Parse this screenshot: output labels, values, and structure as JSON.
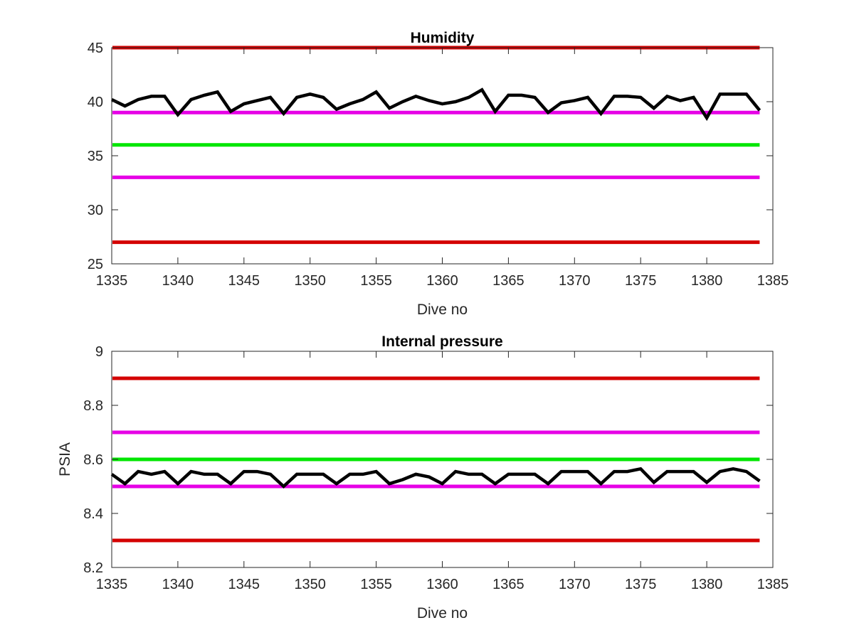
{
  "chart_data": [
    {
      "type": "line",
      "title": "Humidity",
      "xlabel": "Dive no",
      "ylabel": "",
      "xlim": [
        1335,
        1385
      ],
      "ylim": [
        25,
        45
      ],
      "xticks": [
        1335,
        1340,
        1345,
        1350,
        1355,
        1360,
        1365,
        1370,
        1375,
        1380,
        1385
      ],
      "yticks": [
        25,
        30,
        35,
        40,
        45
      ],
      "grid": false,
      "reference_lines": [
        {
          "y": 45,
          "color": "#d40000"
        },
        {
          "y": 39,
          "color": "#e600e6"
        },
        {
          "y": 36,
          "color": "#00e600"
        },
        {
          "y": 33,
          "color": "#e600e6"
        },
        {
          "y": 27,
          "color": "#d40000"
        }
      ],
      "series": [
        {
          "color": "#000000",
          "x": [
            1335,
            1336,
            1337,
            1338,
            1339,
            1340,
            1341,
            1342,
            1343,
            1344,
            1345,
            1346,
            1347,
            1348,
            1349,
            1350,
            1351,
            1352,
            1353,
            1354,
            1355,
            1356,
            1357,
            1358,
            1359,
            1360,
            1361,
            1362,
            1363,
            1364,
            1365,
            1366,
            1367,
            1368,
            1369,
            1370,
            1371,
            1372,
            1373,
            1374,
            1375,
            1376,
            1377,
            1378,
            1379,
            1380,
            1381,
            1382,
            1383,
            1384
          ],
          "y": [
            40.2,
            39.6,
            40.2,
            40.5,
            40.5,
            38.8,
            40.2,
            40.6,
            40.9,
            39.1,
            39.8,
            40.1,
            40.4,
            38.9,
            40.4,
            40.7,
            40.4,
            39.3,
            39.8,
            40.2,
            40.9,
            39.4,
            40.0,
            40.5,
            40.1,
            39.8,
            40.0,
            40.4,
            41.1,
            39.1,
            40.6,
            40.6,
            40.4,
            39.0,
            39.9,
            40.1,
            40.4,
            38.9,
            40.5,
            40.5,
            40.4,
            39.4,
            40.5,
            40.1,
            40.4,
            38.5,
            40.7,
            40.7,
            40.7,
            39.2
          ]
        }
      ]
    },
    {
      "type": "line",
      "title": "Internal pressure",
      "xlabel": "Dive no",
      "ylabel": "PSIA",
      "xlim": [
        1335,
        1385
      ],
      "ylim": [
        8.2,
        9
      ],
      "xticks": [
        1335,
        1340,
        1345,
        1350,
        1355,
        1360,
        1365,
        1370,
        1375,
        1380,
        1385
      ],
      "yticks": [
        8.2,
        8.4,
        8.6,
        8.8,
        9
      ],
      "grid": false,
      "reference_lines": [
        {
          "y": 8.9,
          "color": "#d40000"
        },
        {
          "y": 8.7,
          "color": "#e600e6"
        },
        {
          "y": 8.6,
          "color": "#00e600"
        },
        {
          "y": 8.5,
          "color": "#e600e6"
        },
        {
          "y": 8.3,
          "color": "#d40000"
        }
      ],
      "series": [
        {
          "color": "#000000",
          "x": [
            1335,
            1336,
            1337,
            1338,
            1339,
            1340,
            1341,
            1342,
            1343,
            1344,
            1345,
            1346,
            1347,
            1348,
            1349,
            1350,
            1351,
            1352,
            1353,
            1354,
            1355,
            1356,
            1357,
            1358,
            1359,
            1360,
            1361,
            1362,
            1363,
            1364,
            1365,
            1366,
            1367,
            1368,
            1369,
            1370,
            1371,
            1372,
            1373,
            1374,
            1375,
            1376,
            1377,
            1378,
            1379,
            1380,
            1381,
            1382,
            1383,
            1384
          ],
          "y": [
            8.545,
            8.51,
            8.555,
            8.545,
            8.555,
            8.51,
            8.555,
            8.545,
            8.545,
            8.51,
            8.555,
            8.555,
            8.545,
            8.5,
            8.545,
            8.545,
            8.545,
            8.51,
            8.545,
            8.545,
            8.555,
            8.51,
            8.525,
            8.545,
            8.535,
            8.51,
            8.555,
            8.545,
            8.545,
            8.51,
            8.545,
            8.545,
            8.545,
            8.51,
            8.555,
            8.555,
            8.555,
            8.51,
            8.555,
            8.555,
            8.565,
            8.515,
            8.555,
            8.555,
            8.555,
            8.515,
            8.555,
            8.565,
            8.555,
            8.52
          ]
        }
      ]
    }
  ]
}
